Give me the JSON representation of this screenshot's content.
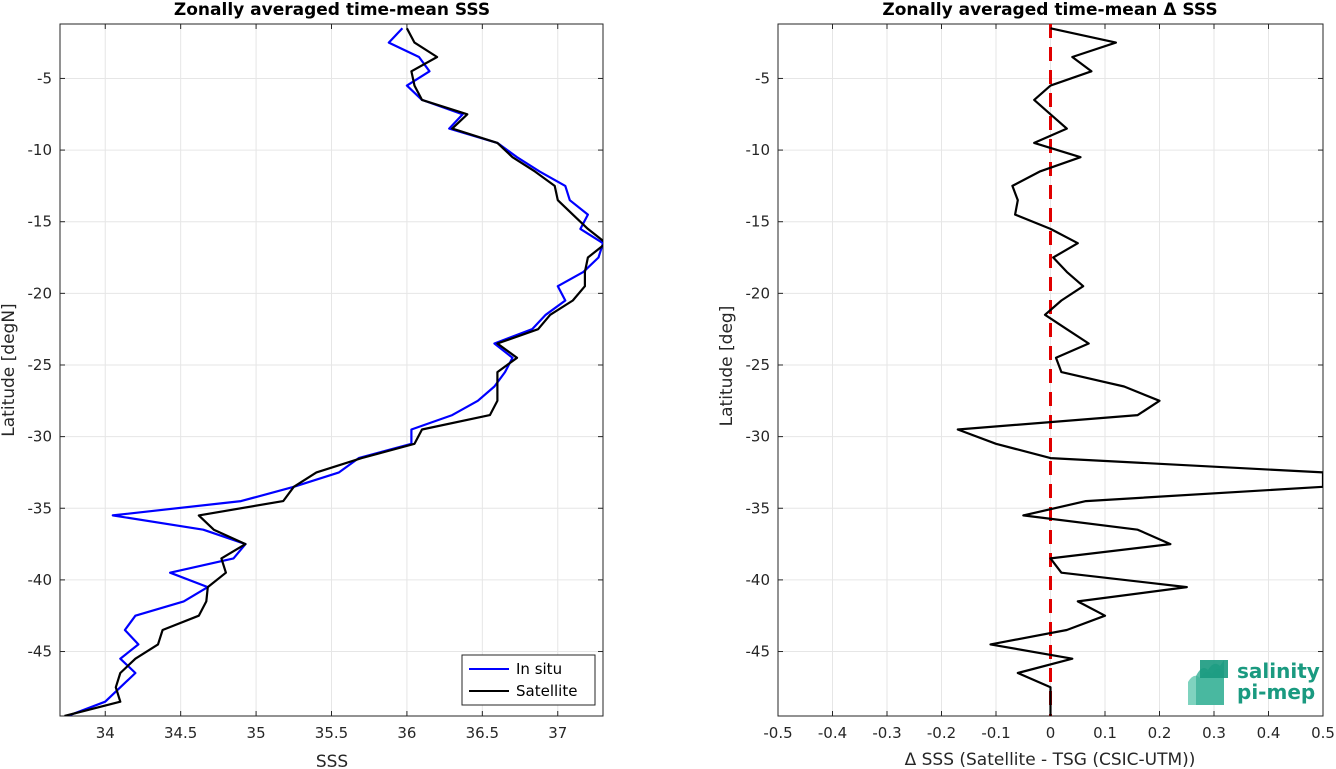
{
  "chart_data": [
    {
      "type": "line",
      "title": "Zonally averaged time-mean SSS",
      "xlabel": "SSS",
      "ylabel": "Latitude [degN]",
      "xlim": [
        33.7,
        37.3
      ],
      "ylim": [
        -49.5,
        -1.2
      ],
      "x_ticks": [
        34,
        34.5,
        35,
        35.5,
        36,
        36.5,
        37
      ],
      "x_tick_labels": [
        "34",
        "34.5",
        "35",
        "35.5",
        "36",
        "36.5",
        "37"
      ],
      "y_ticks": [
        -5,
        -10,
        -15,
        -20,
        -25,
        -30,
        -35,
        -40,
        -45
      ],
      "y_tick_labels": [
        "-5",
        "-10",
        "-15",
        "-20",
        "-25",
        "-30",
        "-35",
        "-40",
        "-45"
      ],
      "grid": true,
      "legend_position": "bottom-right",
      "series": [
        {
          "name": "In situ",
          "color": "#0000ff",
          "y": [
            -1.5,
            -2.5,
            -3.5,
            -4.5,
            -5.5,
            -6.5,
            -7.5,
            -8.5,
            -9.5,
            -10.5,
            -11.5,
            -12.5,
            -13.5,
            -14.5,
            -15.5,
            -16.5,
            -17.5,
            -18.5,
            -19.5,
            -20.5,
            -21.5,
            -22.5,
            -23.5,
            -24.5,
            -25.5,
            -26.5,
            -27.5,
            -28.5,
            -29.5,
            -30.5,
            -31.5,
            -32.5,
            -33.5,
            -34.5,
            -35.5,
            -36.5,
            -37.5,
            -38.5,
            -39.5,
            -40.5,
            -41.5,
            -42.5,
            -43.5,
            -44.5,
            -45.5,
            -46.5,
            -47.5,
            -48.5,
            -49.5
          ],
          "x": [
            35.97,
            35.88,
            36.08,
            36.15,
            36.0,
            36.1,
            36.37,
            36.28,
            36.6,
            36.73,
            36.88,
            37.05,
            37.08,
            37.2,
            37.15,
            37.3,
            37.27,
            37.17,
            37.0,
            37.05,
            36.92,
            36.83,
            36.58,
            36.7,
            36.65,
            36.58,
            36.47,
            36.3,
            36.03,
            36.03,
            35.68,
            35.55,
            35.25,
            34.9,
            34.05,
            34.65,
            34.93,
            34.85,
            34.43,
            34.68,
            34.52,
            34.2,
            34.13,
            34.22,
            34.1,
            34.2,
            34.1,
            34.0,
            33.75
          ]
        },
        {
          "name": "Satellite",
          "color": "#000000",
          "y": [
            -1.5,
            -2.5,
            -3.5,
            -4.5,
            -5.5,
            -6.5,
            -7.5,
            -8.5,
            -9.5,
            -10.5,
            -11.5,
            -12.5,
            -13.5,
            -14.5,
            -15.5,
            -16.5,
            -17.5,
            -18.5,
            -19.5,
            -20.5,
            -21.5,
            -22.5,
            -23.5,
            -24.5,
            -25.5,
            -26.5,
            -27.5,
            -28.5,
            -29.5,
            -30.5,
            -31.5,
            -32.5,
            -33.5,
            -34.5,
            -35.5,
            -36.5,
            -37.5,
            -38.5,
            -39.5,
            -40.5,
            -41.5,
            -42.5,
            -43.5,
            -44.5,
            -45.5,
            -46.5,
            -47.5,
            -48.5,
            -49.5
          ],
          "x": [
            36.0,
            36.05,
            36.2,
            36.03,
            36.05,
            36.1,
            36.4,
            36.3,
            36.6,
            36.7,
            36.85,
            36.98,
            37.0,
            37.1,
            37.2,
            37.32,
            37.2,
            37.18,
            37.18,
            37.1,
            36.95,
            36.87,
            36.6,
            36.73,
            36.6,
            36.6,
            36.6,
            36.55,
            36.1,
            36.05,
            35.7,
            35.4,
            35.25,
            35.18,
            34.62,
            34.72,
            34.93,
            34.77,
            34.8,
            34.68,
            34.67,
            34.62,
            34.38,
            34.35,
            34.2,
            34.1,
            34.07,
            34.1,
            33.73
          ]
        }
      ]
    },
    {
      "type": "line",
      "title": "Zonally averaged time-mean Δ SSS",
      "xlabel": "Δ SSS (Satellite - TSG (CSIC-UTM))",
      "ylabel": "Latitude [deg]",
      "xlim": [
        -0.5,
        0.5
      ],
      "ylim": [
        -49.5,
        -1.2
      ],
      "x_ticks": [
        -0.5,
        -0.4,
        -0.3,
        -0.2,
        -0.1,
        0,
        0.1,
        0.2,
        0.3,
        0.4,
        0.5
      ],
      "x_tick_labels": [
        "-0.5",
        "-0.4",
        "-0.3",
        "-0.2",
        "-0.1",
        "0",
        "0.1",
        "0.2",
        "0.3",
        "0.4",
        "0.5"
      ],
      "y_ticks": [
        -5,
        -10,
        -15,
        -20,
        -25,
        -30,
        -35,
        -40,
        -45
      ],
      "y_tick_labels": [
        "-5",
        "-10",
        "-15",
        "-20",
        "-25",
        "-30",
        "-35",
        "-40",
        "-45"
      ],
      "grid": true,
      "reference_line": {
        "x": 0,
        "color": "#e00000",
        "style": "dashed"
      },
      "series": [
        {
          "color": "#000000",
          "y": [
            -1.5,
            -2.5,
            -3.5,
            -4.5,
            -5.5,
            -6.5,
            -7.5,
            -8.5,
            -9.5,
            -10.5,
            -11.5,
            -12.5,
            -13.5,
            -14.5,
            -15.5,
            -16.5,
            -17.5,
            -18.5,
            -19.5,
            -20.5,
            -21.5,
            -22.5,
            -23.5,
            -24.5,
            -25.5,
            -26.5,
            -27.5,
            -28.5,
            -29.5,
            -30.5,
            -31.5,
            -32.5,
            -33.5,
            -34.5,
            -35.5,
            -36.5,
            -37.5,
            -38.5,
            -39.5,
            -40.5,
            -41.5,
            -42.5,
            -43.5,
            -44.5,
            -45.5,
            -46.5,
            -47.5,
            -48.5,
            -49.5
          ],
          "x": [
            0.0,
            0.12,
            0.04,
            0.075,
            0.0,
            -0.03,
            0.0,
            0.03,
            -0.03,
            0.055,
            -0.02,
            -0.07,
            -0.06,
            -0.065,
            0.0,
            0.05,
            0.005,
            0.03,
            0.06,
            0.02,
            -0.01,
            0.03,
            0.07,
            0.01,
            0.02,
            0.135,
            0.2,
            0.16,
            -0.17,
            -0.1,
            0.0,
            0.5,
            0.5,
            0.065,
            -0.05,
            0.16,
            0.22,
            0.0,
            0.02,
            0.25,
            0.05,
            0.1,
            0.03,
            -0.11,
            0.04,
            -0.06,
            0.0,
            0.0,
            0.0
          ]
        }
      ]
    }
  ],
  "legend": {
    "items": [
      {
        "label": "In situ",
        "color": "#0000ff"
      },
      {
        "label": "Satellite",
        "color": "#000000"
      }
    ]
  },
  "logo": {
    "line1": "salinity",
    "line2": "pi-mep",
    "color": "#1a9a80"
  }
}
